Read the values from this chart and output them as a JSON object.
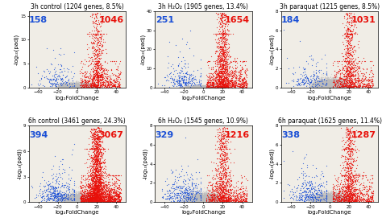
{
  "plots": [
    {
      "title": "3h control (1204 genes, 8.5%)",
      "blue_count": 158,
      "red_count": 1046,
      "xlim": [
        -50,
        50
      ],
      "ylim": [
        0,
        16
      ],
      "yticks": [
        0,
        5,
        10,
        15
      ],
      "xticks": [
        -40,
        -20,
        0,
        20,
        40
      ],
      "seed": 10
    },
    {
      "title": "3h H₂O₂ (1905 genes, 13.4%)",
      "blue_count": 251,
      "red_count": 1654,
      "xlim": [
        -50,
        50
      ],
      "ylim": [
        0,
        40
      ],
      "yticks": [
        0,
        10,
        20,
        30,
        40
      ],
      "xticks": [
        -40,
        -20,
        0,
        20,
        40
      ],
      "seed": 20
    },
    {
      "title": "3h paraquat (1215 genes, 8.5%)",
      "blue_count": 184,
      "red_count": 1031,
      "xlim": [
        -50,
        50
      ],
      "ylim": [
        0,
        8
      ],
      "yticks": [
        0,
        2,
        4,
        6,
        8
      ],
      "xticks": [
        -40,
        -20,
        0,
        20,
        40
      ],
      "seed": 30
    },
    {
      "title": "6h control (3461 genes, 24.3%)",
      "blue_count": 394,
      "red_count": 3067,
      "xlim": [
        -50,
        50
      ],
      "ylim": [
        0,
        9
      ],
      "yticks": [
        0,
        3,
        6,
        9
      ],
      "xticks": [
        -40,
        -20,
        0,
        20,
        40
      ],
      "seed": 40
    },
    {
      "title": "6h H₂O₂ (1545 genes, 10.9%)",
      "blue_count": 329,
      "red_count": 1216,
      "xlim": [
        -50,
        50
      ],
      "ylim": [
        0,
        8
      ],
      "yticks": [
        0,
        2,
        4,
        6,
        8
      ],
      "xticks": [
        -40,
        -20,
        0,
        20,
        40
      ],
      "seed": 50
    },
    {
      "title": "6h paraquat (1625 genes, 11.4%)",
      "blue_count": 338,
      "red_count": 1287,
      "xlim": [
        -50,
        50
      ],
      "ylim": [
        0,
        8
      ],
      "yticks": [
        0,
        2,
        4,
        6,
        8
      ],
      "xticks": [
        -40,
        -20,
        0,
        20,
        40
      ],
      "seed": 60
    }
  ],
  "red_color": "#e8100a",
  "blue_color": "#1a4fd6",
  "gray_color": "#bbbbbb",
  "bg_color": "#f0ede6",
  "xlabel": "log₂FoldChange",
  "ylabel": "-log₁₀(padj)",
  "point_size": 0.8,
  "title_fontsize": 5.5,
  "label_fontsize": 5,
  "count_fontsize": 8
}
